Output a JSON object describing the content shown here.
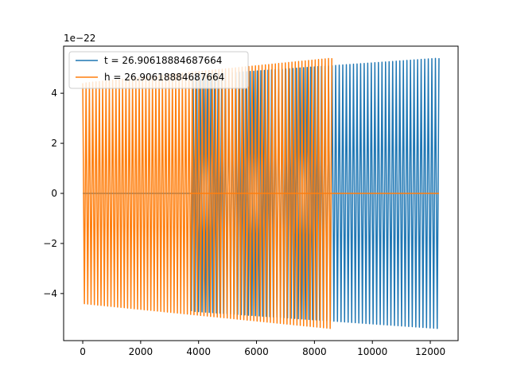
{
  "chart_data": {
    "type": "line",
    "title": "",
    "xlabel": "",
    "ylabel": "",
    "offset_label": "1e−22",
    "xlim": [
      -660,
      12960
    ],
    "ylim": [
      -5.88,
      5.88
    ],
    "xticks": [
      0,
      2000,
      4000,
      6000,
      8000,
      10000,
      12000
    ],
    "xtick_labels": [
      "0",
      "2000",
      "4000",
      "6000",
      "8000",
      "10000",
      "12000"
    ],
    "yticks": [
      -4,
      -2,
      0,
      2,
      4
    ],
    "ytick_labels": [
      "−4",
      "−2",
      "0",
      "2",
      "4"
    ],
    "grid": false,
    "legend_position": "upper-left",
    "series": [
      {
        "name": "t = 26.90618884687664",
        "color": "#1f77b4",
        "x_start": 0,
        "x_end": 12300,
        "cycles": 100,
        "amplitude_start": 4.4,
        "amplitude_end": 5.4
      },
      {
        "name": "h = 26.90618884687664",
        "color": "#ff7f0e",
        "x_start": 0,
        "x_end": 8600,
        "cycles": 75,
        "amplitude_start": 4.4,
        "amplitude_end": 5.4
      }
    ]
  }
}
